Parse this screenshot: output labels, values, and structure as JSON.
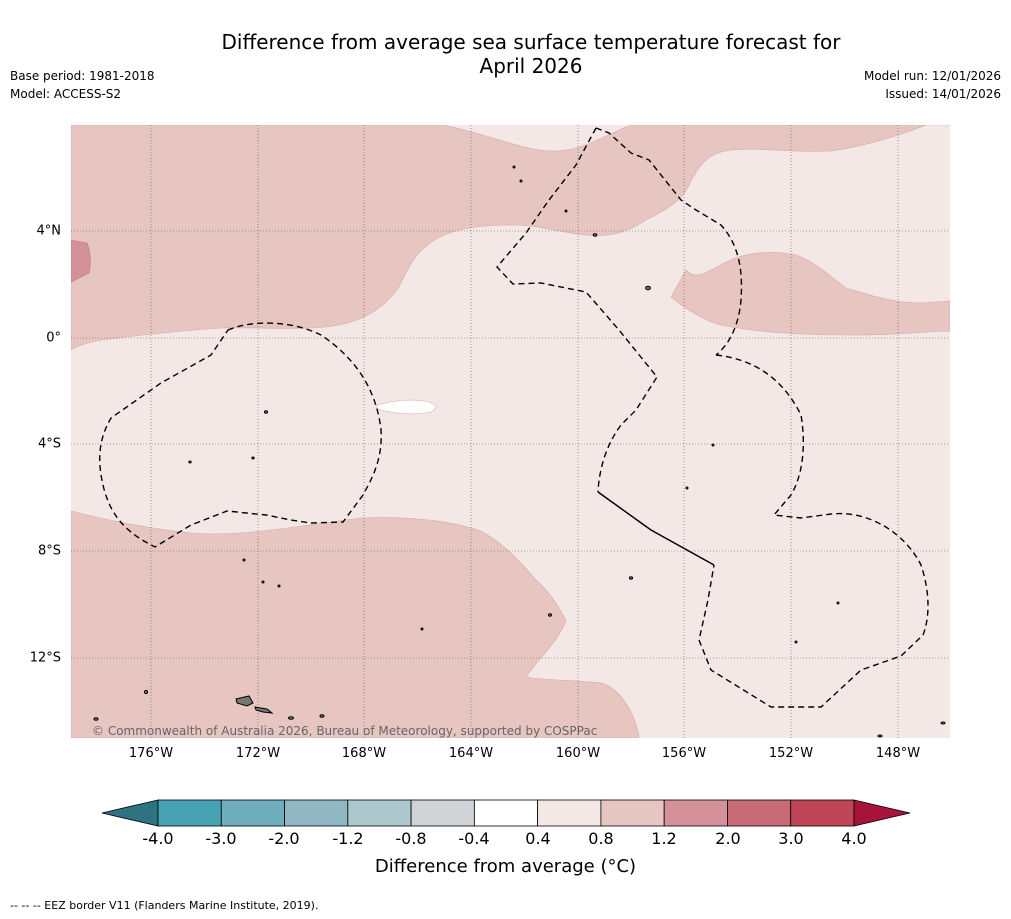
{
  "header": {
    "title_line1": "Difference from average sea surface temperature forecast for",
    "title_line2": "April 2026",
    "base_period": "Base period: 1981-2018",
    "model": "Model: ACCESS-S2",
    "model_run": "Model run: 12/01/2026",
    "issued": "Issued: 14/01/2026"
  },
  "map": {
    "lat_labels": [
      "4°N",
      "0°",
      "4°S",
      "8°S",
      "12°S"
    ],
    "lon_labels": [
      "176°W",
      "172°W",
      "168°W",
      "164°W",
      "160°W",
      "156°W",
      "152°W",
      "148°W"
    ],
    "credit": "© Commonwealth of Australia 2026, Bureau of Meteorology, supported by COSPPac",
    "region_fill": "#f4e8e7",
    "warm_fill": "#e7c6c2",
    "hot_fill": "#d4919a",
    "neutral_fill": "#ffffff"
  },
  "colorbar": {
    "ticks": [
      "-4.0",
      "-3.0",
      "-2.0",
      "-1.2",
      "-0.8",
      "-0.4",
      "0.4",
      "0.8",
      "1.2",
      "2.0",
      "3.0",
      "4.0"
    ],
    "colors": [
      "#2e7480",
      "#47a3b3",
      "#6faebc",
      "#8fb8c4",
      "#abc8ce",
      "#d1d4d6",
      "#ffffff",
      "#f4e8e7",
      "#e7c6c2",
      "#d4919a",
      "#c96b75",
      "#bf4656",
      "#a8133a"
    ],
    "title": "Difference from average (°C)"
  },
  "footer": {
    "legend_note": "--  --  -- EEZ border V11 (Flanders Marine Institute, 2019)."
  }
}
